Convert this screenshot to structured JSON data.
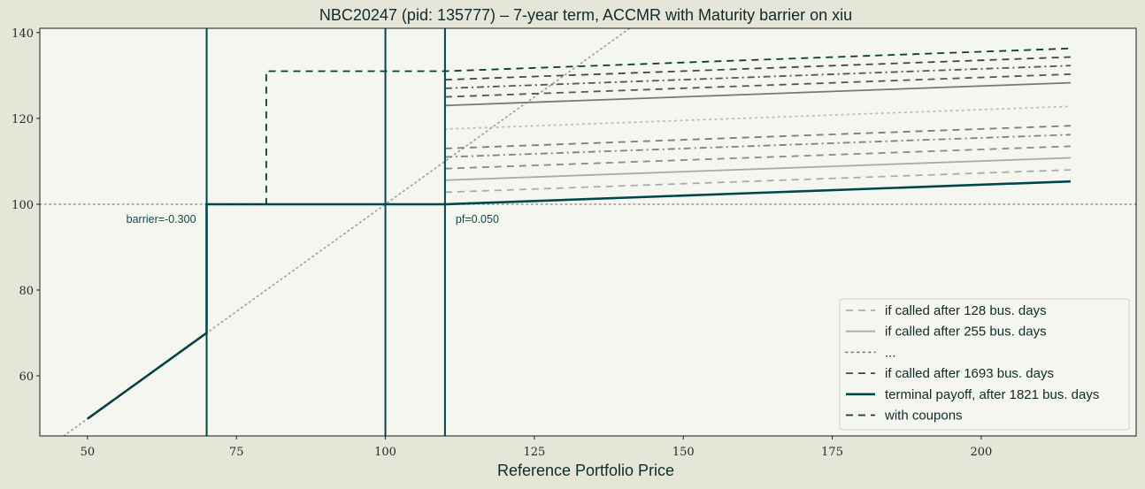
{
  "chart_data": {
    "type": "line",
    "title": "NBC20247 (pid: 135777) – 7-year term, ACCMR with Maturity barrier on xiu",
    "xlabel": "Reference Portfolio Price",
    "ylabel": "",
    "xlim": [
      42,
      226
    ],
    "ylim": [
      46,
      141
    ],
    "xticks": [
      50,
      75,
      100,
      125,
      150,
      175,
      200
    ],
    "yticks": [
      60,
      80,
      100,
      120,
      140
    ],
    "grid": false,
    "colors": {
      "figure_bg": "#e6e6d8",
      "axes_bg": "#f5f6f0",
      "accent": "#00474a",
      "reference": "#9a9a9a"
    },
    "reference_lines": {
      "horizontal_y": 100,
      "diagonal": "y = x",
      "vertical_x": [
        70,
        100,
        110
      ]
    },
    "annotations": [
      {
        "text": "barrier=-0.300",
        "x": 70,
        "y": 100
      },
      {
        "text": "pf=0.050",
        "x": 110,
        "y": 100
      }
    ],
    "series": [
      {
        "name": "if called after 128 bus. days",
        "style": "dashed",
        "color": "#aaaaaa",
        "x": [
          110,
          215
        ],
        "y": [
          102.8,
          108.0
        ]
      },
      {
        "name": "if called after 255 bus. days",
        "style": "solid",
        "color": "#aaaaaa",
        "x": [
          110,
          215
        ],
        "y": [
          105.6,
          110.8
        ]
      },
      {
        "style": "dashed",
        "color": "#8a8a8a",
        "x": [
          110,
          215
        ],
        "y": [
          108.3,
          113.5
        ]
      },
      {
        "style": "dashdot",
        "color": "#808080",
        "x": [
          110,
          215
        ],
        "y": [
          111.0,
          116.2
        ]
      },
      {
        "style": "dashed",
        "color": "#7a7a7a",
        "x": [
          110,
          215
        ],
        "y": [
          113.0,
          118.3
        ]
      },
      {
        "name": "...",
        "style": "dotted",
        "color": "#bbbbbb",
        "x": [
          110,
          215
        ],
        "y": [
          117.5,
          122.8
        ]
      },
      {
        "style": "solid",
        "color": "#777777",
        "x": [
          110,
          215
        ],
        "y": [
          123.0,
          128.3
        ]
      },
      {
        "style": "dashed",
        "color": "#555555",
        "x": [
          110,
          215
        ],
        "y": [
          125.0,
          130.3
        ]
      },
      {
        "style": "dashdot",
        "color": "#555555",
        "x": [
          110,
          215
        ],
        "y": [
          127.0,
          132.3
        ]
      },
      {
        "name": "if called after 1693 bus. days",
        "style": "dashed",
        "color": "#444444",
        "x": [
          110,
          215
        ],
        "y": [
          129.0,
          134.3
        ]
      },
      {
        "name": "terminal payoff, after 1821 bus. days",
        "style": "solid",
        "color": "#00474a",
        "x": [
          50,
          70,
          70,
          110,
          215
        ],
        "y": [
          50,
          70,
          100,
          100,
          105.3
        ]
      },
      {
        "name": "with coupons",
        "style": "dashed",
        "color": "#0a3a3a",
        "x": [
          50,
          70,
          70,
          80,
          80,
          110,
          215
        ],
        "y": [
          50,
          70,
          100,
          100,
          131,
          131,
          136.3
        ]
      }
    ],
    "legend": {
      "position": "lower-right",
      "entries": [
        {
          "label": "if called after 128 bus. days",
          "style": "dashed",
          "color": "#aaaaaa"
        },
        {
          "label": "if called after 255 bus. days",
          "style": "solid",
          "color": "#aaaaaa"
        },
        {
          "label": "...",
          "style": "dotted",
          "color": "#777777"
        },
        {
          "label": "if called after 1693 bus. days",
          "style": "dashed",
          "color": "#444444"
        },
        {
          "label": "terminal payoff, after 1821 bus. days",
          "style": "solid",
          "color": "#00474a"
        },
        {
          "label": "with coupons",
          "style": "dashed",
          "color": "#0a3a3a"
        }
      ]
    }
  }
}
